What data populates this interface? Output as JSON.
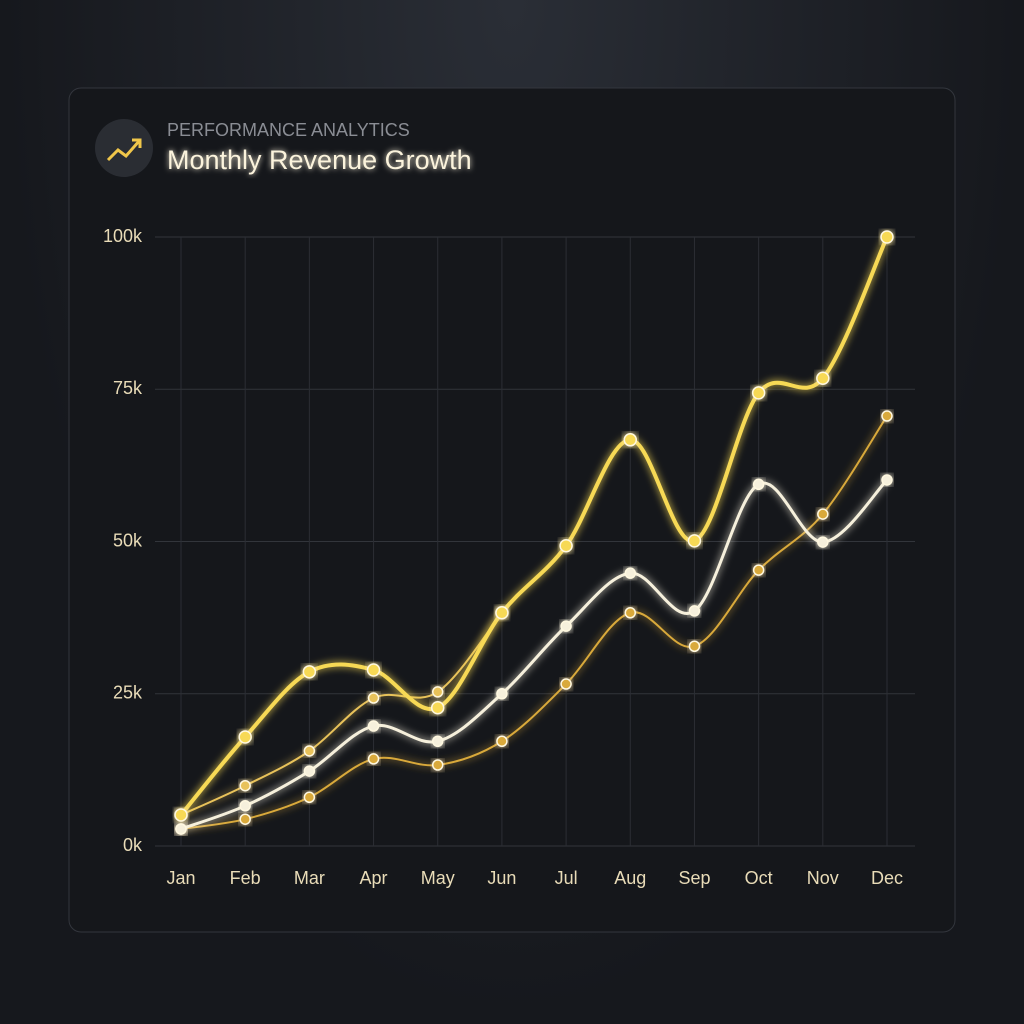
{
  "header": {
    "eyebrow": "PERFORMANCE ANALYTICS",
    "title": "Monthly Revenue Growth"
  },
  "chart_data": {
    "type": "line",
    "categories": [
      "Jan",
      "Feb",
      "Mar",
      "Apr",
      "May",
      "Jun",
      "Jul",
      "Aug",
      "Sep",
      "Oct",
      "Nov",
      "Dec"
    ],
    "series": [
      {
        "color": "#f7d954",
        "values": [
          5.1,
          17.9,
          28.6,
          28.9,
          22.7,
          38.3,
          49.3,
          66.7,
          50.1,
          74.4,
          76.8,
          100
        ]
      },
      {
        "color": "#f6f0dc",
        "values": [
          2.8,
          6.6,
          12.3,
          19.7,
          17.2,
          25.0,
          36.1,
          44.8,
          38.6,
          59.4,
          49.9,
          60.1
        ]
      },
      {
        "color": "#e8c25a",
        "values": [
          5.1,
          9.9,
          15.6,
          24.3,
          25.3,
          38.3,
          null,
          null,
          null,
          null,
          null,
          null
        ]
      },
      {
        "color": "#d9a93a",
        "values": [
          2.8,
          4.4,
          8.0,
          14.3,
          13.3,
          17.2,
          26.6,
          38.3,
          32.8,
          45.3,
          54.5,
          70.6
        ]
      }
    ],
    "ylim": [
      0,
      100
    ],
    "yticks": [
      {
        "value": 0,
        "label": "0k"
      },
      {
        "value": 25,
        "label": "25k"
      },
      {
        "value": 50,
        "label": "50k"
      },
      {
        "value": 75,
        "label": "75k"
      },
      {
        "value": 100,
        "label": "100k"
      }
    ],
    "grid": true
  }
}
